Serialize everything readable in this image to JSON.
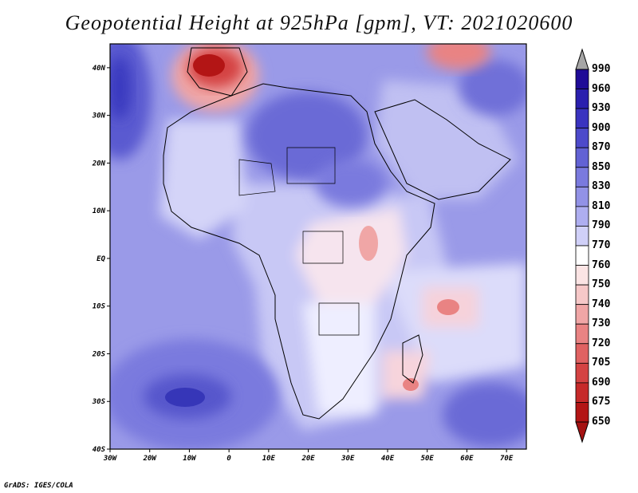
{
  "title": "Geopotential Height at 925hPa [gpm], VT: 2021020600",
  "credit": "GrADS: IGES/COLA",
  "axes": {
    "lat_labels": [
      "40N",
      "30N",
      "20N",
      "10N",
      "EQ",
      "10S",
      "20S",
      "30S",
      "40S"
    ],
    "lat_values": [
      40,
      30,
      20,
      10,
      0,
      -10,
      -20,
      -30,
      -40
    ],
    "lon_labels": [
      "30W",
      "20W",
      "10W",
      "0",
      "10E",
      "20E",
      "30E",
      "40E",
      "50E",
      "60E",
      "70E"
    ],
    "lon_values": [
      -30,
      -20,
      -10,
      0,
      10,
      20,
      30,
      40,
      50,
      60,
      70
    ],
    "lon_range": [
      -30,
      75
    ],
    "lat_range": [
      -40,
      45
    ]
  },
  "colorbar": {
    "levels": [
      "990",
      "960",
      "930",
      "900",
      "870",
      "850",
      "830",
      "810",
      "790",
      "770",
      "760",
      "750",
      "740",
      "730",
      "720",
      "705",
      "690",
      "675",
      "650"
    ],
    "colors": [
      "#1f0b97",
      "#2a1fae",
      "#3a33c0",
      "#4d4acb",
      "#6262d4",
      "#7a7ade",
      "#9292e6",
      "#aeaef0",
      "#d0d0f8",
      "#ffffff",
      "#fbe4e4",
      "#f6c8c8",
      "#f0a6a6",
      "#e98383",
      "#e06262",
      "#d44343",
      "#c62a2a",
      "#b31515"
    ],
    "over_color": "#a6a6a6",
    "under_color": "#a51212"
  },
  "colors": {
    "background": "#9a9ae8",
    "coast": "#000000"
  }
}
